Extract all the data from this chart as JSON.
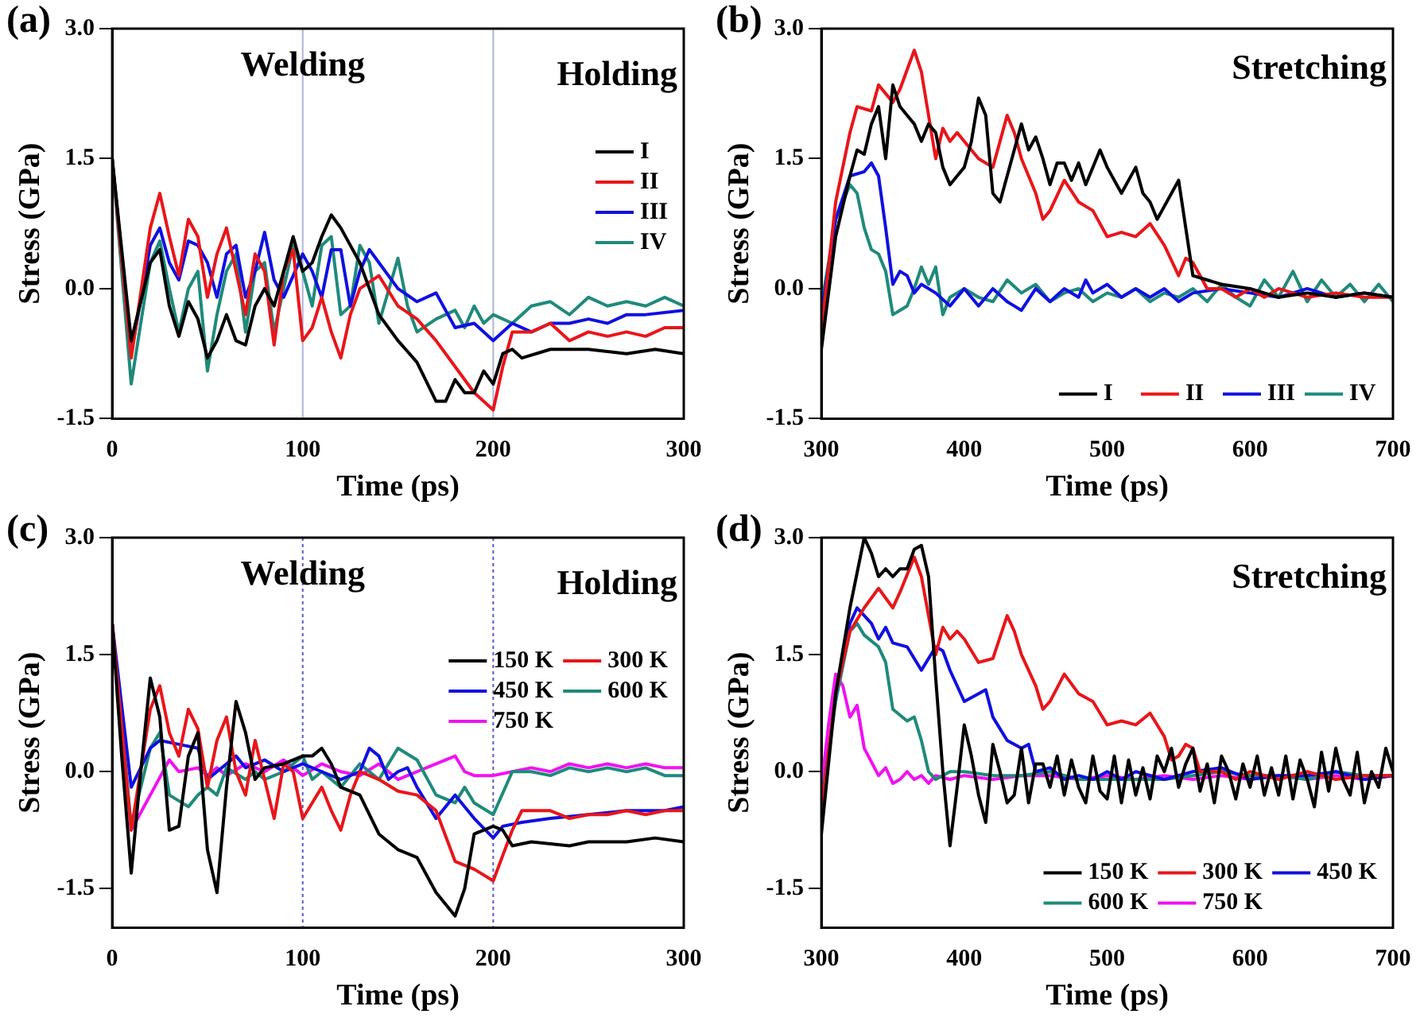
{
  "chart_data": [
    {
      "type": "line",
      "title": "(a)",
      "xlabel": "Time (ps)",
      "ylabel": "Stress (GPa)",
      "xlim": [
        0,
        300
      ],
      "xticks": [
        0,
        100,
        200,
        300
      ],
      "ylim": [
        -1.5,
        3.0
      ],
      "yticks": [
        {
          "value": -1.5,
          "label": "-1.5"
        },
        {
          "value": 0,
          "label": "0.0"
        },
        {
          "value": 1.5,
          "label": "1.5"
        },
        {
          "value": 3,
          "label": "3.0"
        }
      ],
      "legend": "top right",
      "ref_lines": [
        {
          "axis": "x",
          "value": 100,
          "color": "#b0b4d8",
          "line_style": "solid"
        },
        {
          "axis": "x",
          "value": 200,
          "color": "#b0b4d8",
          "line_style": "solid"
        }
      ],
      "annotations": [
        "Welding",
        "Holding"
      ],
      "series": [
        {
          "name": "I",
          "color": "#000000",
          "x": [
            0,
            10,
            20,
            25,
            30,
            35,
            40,
            45,
            50,
            55,
            60,
            65,
            70,
            75,
            80,
            85,
            90,
            95,
            100,
            105,
            110,
            115,
            120,
            130,
            140,
            150,
            160,
            170,
            175,
            180,
            185,
            190,
            195,
            200,
            205,
            210,
            215,
            230,
            250,
            270,
            285,
            300
          ],
          "values": [
            1.5,
            -0.6,
            0.3,
            0.45,
            -0.2,
            -0.55,
            -0.15,
            -0.35,
            -0.8,
            -0.6,
            -0.3,
            -0.6,
            -0.65,
            -0.2,
            0.0,
            -0.2,
            0.2,
            0.6,
            0.2,
            0.3,
            0.6,
            0.85,
            0.7,
            0.3,
            -0.3,
            -0.6,
            -0.85,
            -1.3,
            -1.3,
            -1.05,
            -1.2,
            -1.2,
            -0.95,
            -1.1,
            -0.75,
            -0.7,
            -0.8,
            -0.7,
            -0.7,
            -0.75,
            -0.7,
            -0.75
          ]
        },
        {
          "name": "II",
          "color": "#e8161a",
          "x": [
            0,
            10,
            20,
            25,
            30,
            35,
            40,
            45,
            50,
            55,
            60,
            65,
            70,
            75,
            80,
            85,
            90,
            95,
            100,
            105,
            110,
            115,
            120,
            125,
            130,
            140,
            150,
            160,
            170,
            180,
            190,
            200,
            205,
            210,
            220,
            230,
            240,
            250,
            260,
            270,
            280,
            290,
            300
          ],
          "values": [
            1.5,
            -0.8,
            0.7,
            1.1,
            0.6,
            0.15,
            0.8,
            0.6,
            -0.1,
            0.4,
            0.7,
            0.2,
            -0.3,
            0.4,
            0.2,
            -0.65,
            0.2,
            0.45,
            -0.6,
            -0.45,
            -0.1,
            -0.5,
            -0.8,
            -0.3,
            0.0,
            0.15,
            -0.2,
            -0.35,
            -0.6,
            -0.9,
            -1.2,
            -1.4,
            -0.9,
            -0.5,
            -0.5,
            -0.4,
            -0.6,
            -0.5,
            -0.55,
            -0.5,
            -0.55,
            -0.45,
            -0.45
          ]
        },
        {
          "name": "III",
          "color": "#1010e0",
          "x": [
            0,
            10,
            20,
            25,
            30,
            35,
            40,
            45,
            50,
            55,
            60,
            65,
            70,
            75,
            80,
            85,
            90,
            100,
            105,
            110,
            115,
            120,
            125,
            130,
            135,
            140,
            150,
            160,
            170,
            180,
            190,
            200,
            210,
            220,
            230,
            240,
            250,
            260,
            270,
            280,
            300
          ],
          "values": [
            1.5,
            -0.75,
            0.5,
            0.7,
            0.3,
            0.1,
            0.55,
            0.5,
            0.3,
            -0.1,
            0.4,
            0.5,
            -0.1,
            0.2,
            0.65,
            0.1,
            -0.1,
            0.4,
            0.2,
            -0.1,
            0.45,
            0.45,
            -0.2,
            0.2,
            0.45,
            0.3,
            0.0,
            -0.15,
            -0.05,
            -0.45,
            -0.4,
            -0.6,
            -0.4,
            -0.5,
            -0.4,
            -0.4,
            -0.35,
            -0.4,
            -0.3,
            -0.3,
            -0.25
          ]
        },
        {
          "name": "IV",
          "color": "#1f8a7a",
          "x": [
            0,
            10,
            20,
            25,
            30,
            35,
            40,
            45,
            50,
            55,
            60,
            65,
            70,
            75,
            80,
            85,
            90,
            95,
            100,
            105,
            110,
            115,
            120,
            125,
            130,
            135,
            140,
            150,
            155,
            160,
            170,
            180,
            185,
            190,
            195,
            200,
            210,
            220,
            230,
            240,
            250,
            260,
            270,
            280,
            290,
            300
          ],
          "values": [
            1.5,
            -1.1,
            0.3,
            0.55,
            0.0,
            -0.5,
            0.0,
            0.2,
            -0.95,
            -0.3,
            0.2,
            0.4,
            -0.5,
            0.2,
            0.3,
            -0.5,
            0.0,
            0.5,
            0.2,
            -0.2,
            0.5,
            0.6,
            -0.3,
            -0.2,
            0.5,
            0.3,
            -0.4,
            0.35,
            -0.2,
            -0.5,
            -0.35,
            -0.25,
            -0.45,
            -0.2,
            -0.4,
            -0.3,
            -0.4,
            -0.2,
            -0.15,
            -0.3,
            -0.1,
            -0.2,
            -0.15,
            -0.2,
            -0.1,
            -0.2
          ]
        }
      ]
    },
    {
      "type": "line",
      "title": "(b)",
      "xlabel": "Time (ps)",
      "ylabel": "Stress (GPa)",
      "xlim": [
        300,
        700
      ],
      "xticks": [
        300,
        400,
        500,
        600,
        700
      ],
      "ylim": [
        -1.5,
        3.0
      ],
      "yticks": [
        {
          "value": -1.5,
          "label": "-1.5"
        },
        {
          "value": 0,
          "label": "0.0"
        },
        {
          "value": 1.5,
          "label": "1.5"
        },
        {
          "value": 3,
          "label": "3.0"
        }
      ],
      "legend": "bottom right",
      "annotations": [
        "Stretching"
      ],
      "series": [
        {
          "name": "I",
          "color": "#000000",
          "x": [
            300,
            310,
            320,
            325,
            330,
            335,
            340,
            345,
            350,
            355,
            360,
            365,
            370,
            375,
            380,
            385,
            390,
            395,
            400,
            405,
            410,
            415,
            420,
            425,
            430,
            435,
            440,
            445,
            450,
            455,
            460,
            465,
            470,
            475,
            480,
            485,
            495,
            500,
            510,
            520,
            525,
            530,
            535,
            540,
            550,
            560,
            570,
            580,
            600,
            620,
            640,
            660,
            680,
            700
          ],
          "values": [
            -0.7,
            0.6,
            1.3,
            1.6,
            1.55,
            1.9,
            2.1,
            1.5,
            2.35,
            2.1,
            2.0,
            1.9,
            1.7,
            1.9,
            1.8,
            1.4,
            1.2,
            1.3,
            1.4,
            1.7,
            2.2,
            2.0,
            1.1,
            1.0,
            1.3,
            1.6,
            1.9,
            1.6,
            1.75,
            1.5,
            1.2,
            1.45,
            1.45,
            1.25,
            1.45,
            1.2,
            1.6,
            1.4,
            1.1,
            1.4,
            1.1,
            1.0,
            0.8,
            0.95,
            1.25,
            0.15,
            0.1,
            0.05,
            0.0,
            -0.1,
            -0.05,
            -0.1,
            -0.05,
            -0.1
          ]
        },
        {
          "name": "II",
          "color": "#e8161a",
          "x": [
            300,
            310,
            320,
            325,
            335,
            340,
            350,
            355,
            365,
            370,
            375,
            380,
            385,
            390,
            395,
            400,
            410,
            420,
            430,
            435,
            440,
            450,
            455,
            460,
            470,
            480,
            490,
            500,
            510,
            520,
            530,
            540,
            550,
            555,
            560,
            570,
            580,
            590,
            600,
            610,
            620,
            640,
            660,
            680,
            700
          ],
          "values": [
            -0.5,
            1.0,
            1.8,
            2.1,
            2.05,
            2.35,
            2.15,
            2.3,
            2.75,
            2.5,
            2.0,
            1.5,
            1.85,
            1.7,
            1.8,
            1.7,
            1.5,
            1.4,
            2.0,
            1.8,
            1.5,
            1.1,
            0.8,
            0.9,
            1.25,
            1.0,
            0.9,
            0.6,
            0.65,
            0.6,
            0.75,
            0.5,
            0.15,
            0.35,
            0.3,
            0.0,
            0.0,
            -0.1,
            0.0,
            -0.1,
            0.0,
            -0.1,
            -0.05,
            -0.1,
            -0.1
          ]
        },
        {
          "name": "III",
          "color": "#1010e0",
          "x": [
            300,
            310,
            320,
            330,
            335,
            340,
            345,
            350,
            355,
            360,
            365,
            370,
            380,
            390,
            400,
            410,
            420,
            430,
            440,
            450,
            460,
            470,
            480,
            485,
            490,
            500,
            510,
            520,
            530,
            540,
            550,
            560,
            580,
            600,
            620,
            640,
            660,
            680,
            700
          ],
          "values": [
            -0.3,
            0.8,
            1.3,
            1.35,
            1.45,
            1.3,
            0.7,
            0.05,
            0.2,
            0.15,
            -0.05,
            0.05,
            -0.05,
            -0.2,
            0.0,
            -0.2,
            0.0,
            -0.15,
            -0.25,
            0.0,
            -0.15,
            0.0,
            -0.1,
            0.1,
            -0.05,
            0.05,
            -0.1,
            0.0,
            -0.1,
            0.0,
            -0.15,
            -0.05,
            0.0,
            -0.05,
            -0.1,
            0.0,
            -0.1,
            -0.05,
            -0.1
          ]
        },
        {
          "name": "IV",
          "color": "#1f8a7a",
          "x": [
            300,
            310,
            320,
            325,
            330,
            335,
            340,
            345,
            350,
            355,
            360,
            365,
            370,
            375,
            380,
            385,
            390,
            400,
            410,
            420,
            430,
            440,
            450,
            460,
            470,
            480,
            490,
            500,
            510,
            520,
            530,
            540,
            550,
            560,
            570,
            580,
            590,
            600,
            610,
            620,
            630,
            640,
            650,
            660,
            670,
            680,
            690,
            700
          ],
          "values": [
            -0.2,
            0.8,
            1.2,
            1.1,
            0.7,
            0.45,
            0.4,
            0.2,
            -0.3,
            -0.25,
            -0.2,
            0.0,
            0.25,
            0.05,
            0.25,
            -0.3,
            -0.1,
            0.0,
            -0.1,
            -0.15,
            0.1,
            -0.05,
            0.05,
            -0.15,
            -0.05,
            0.0,
            -0.15,
            -0.05,
            -0.1,
            0.0,
            -0.15,
            -0.05,
            -0.1,
            0.0,
            -0.15,
            0.05,
            -0.1,
            -0.2,
            0.1,
            -0.1,
            0.2,
            -0.15,
            0.1,
            -0.1,
            0.05,
            -0.15,
            0.05,
            -0.15
          ]
        }
      ]
    },
    {
      "type": "line",
      "title": "(c)",
      "xlabel": "Time (ps)",
      "ylabel": "Stress (GPa)",
      "xlim": [
        0,
        300
      ],
      "xticks": [
        0,
        100,
        200,
        300
      ],
      "ylim": [
        -2.0,
        3.0
      ],
      "yticks": [
        {
          "value": -1.5,
          "label": "-1.5"
        },
        {
          "value": 0,
          "label": "0.0"
        },
        {
          "value": 1.5,
          "label": "1.5"
        },
        {
          "value": 3,
          "label": "3.0"
        }
      ],
      "legend": "top right",
      "ref_lines": [
        {
          "axis": "x",
          "value": 100,
          "color": "#5a5ad0",
          "line_style": "dotted"
        },
        {
          "axis": "x",
          "value": 200,
          "color": "#5a5ad0",
          "line_style": "dotted"
        }
      ],
      "annotations": [
        "Welding",
        "Holding"
      ],
      "series": [
        {
          "name": "150 K",
          "color": "#000000",
          "x": [
            0,
            5,
            10,
            15,
            20,
            25,
            30,
            35,
            40,
            45,
            50,
            55,
            60,
            65,
            70,
            75,
            80,
            90,
            100,
            105,
            110,
            115,
            120,
            130,
            140,
            150,
            160,
            170,
            180,
            185,
            190,
            200,
            205,
            210,
            220,
            240,
            250,
            270,
            285,
            300
          ],
          "values": [
            1.9,
            0.2,
            -1.3,
            0.0,
            1.2,
            0.7,
            -0.75,
            -0.7,
            0.2,
            0.5,
            -1.0,
            -1.55,
            -0.2,
            0.9,
            0.5,
            -0.1,
            0.05,
            0.1,
            0.2,
            0.2,
            0.3,
            0.1,
            -0.2,
            -0.3,
            -0.8,
            -1.0,
            -1.1,
            -1.55,
            -1.85,
            -1.5,
            -0.8,
            -0.7,
            -0.75,
            -0.95,
            -0.9,
            -0.95,
            -0.9,
            -0.9,
            -0.85,
            -0.9
          ]
        },
        {
          "name": "300 K",
          "color": "#e8161a",
          "x": [
            0,
            10,
            20,
            25,
            30,
            35,
            40,
            45,
            50,
            55,
            60,
            65,
            70,
            75,
            80,
            85,
            90,
            95,
            100,
            105,
            110,
            115,
            120,
            125,
            130,
            140,
            150,
            160,
            170,
            180,
            190,
            200,
            210,
            215,
            230,
            240,
            250,
            260,
            270,
            280,
            290,
            300
          ],
          "values": [
            1.9,
            -0.75,
            0.8,
            1.1,
            0.5,
            0.2,
            0.8,
            0.55,
            -0.2,
            0.4,
            0.7,
            0.0,
            -0.3,
            0.4,
            -0.1,
            -0.6,
            0.1,
            0.0,
            -0.6,
            -0.4,
            -0.2,
            -0.5,
            -0.75,
            -0.3,
            0.0,
            -0.1,
            -0.25,
            -0.3,
            -0.5,
            -1.15,
            -1.25,
            -1.4,
            -0.75,
            -0.5,
            -0.5,
            -0.6,
            -0.55,
            -0.55,
            -0.5,
            -0.55,
            -0.5,
            -0.5
          ]
        },
        {
          "name": "450 K",
          "color": "#1010e0",
          "x": [
            0,
            10,
            20,
            25,
            35,
            45,
            50,
            60,
            65,
            70,
            80,
            90,
            100,
            110,
            120,
            130,
            135,
            140,
            145,
            150,
            155,
            160,
            170,
            180,
            190,
            200,
            205,
            215,
            230,
            250,
            270,
            290,
            300
          ],
          "values": [
            1.9,
            -0.2,
            0.3,
            0.4,
            0.35,
            0.3,
            -0.1,
            0.1,
            0.2,
            0.05,
            0.15,
            0.0,
            0.1,
            0.0,
            -0.1,
            0.0,
            0.3,
            0.2,
            -0.1,
            0.0,
            0.05,
            -0.2,
            -0.6,
            -0.3,
            -0.6,
            -0.85,
            -0.7,
            -0.65,
            -0.6,
            -0.55,
            -0.5,
            -0.5,
            -0.45
          ]
        },
        {
          "name": "600 K",
          "color": "#1f8a7a",
          "x": [
            0,
            10,
            20,
            25,
            30,
            40,
            45,
            50,
            55,
            60,
            70,
            75,
            80,
            90,
            100,
            105,
            110,
            120,
            130,
            140,
            150,
            160,
            170,
            180,
            185,
            190,
            200,
            210,
            220,
            230,
            240,
            250,
            260,
            270,
            280,
            290,
            300
          ],
          "values": [
            1.9,
            -0.7,
            0.3,
            0.5,
            -0.3,
            -0.45,
            -0.3,
            -0.2,
            -0.3,
            0.05,
            -0.1,
            0.0,
            -0.1,
            0.0,
            0.2,
            -0.1,
            0.0,
            -0.2,
            0.1,
            -0.1,
            0.3,
            0.15,
            -0.3,
            -0.4,
            -0.2,
            -0.4,
            -0.55,
            0.0,
            0.0,
            -0.05,
            0.05,
            0.0,
            0.05,
            0.0,
            0.05,
            -0.05,
            -0.05
          ]
        },
        {
          "name": "750 K",
          "color": "#f012f0",
          "x": [
            0,
            10,
            20,
            30,
            35,
            45,
            50,
            55,
            60,
            70,
            80,
            90,
            100,
            110,
            120,
            130,
            140,
            150,
            160,
            170,
            180,
            185,
            190,
            200,
            210,
            220,
            230,
            240,
            250,
            260,
            270,
            280,
            290,
            300
          ],
          "values": [
            1.9,
            -0.75,
            -0.3,
            0.15,
            0.0,
            0.05,
            -0.05,
            0.05,
            -0.05,
            0.1,
            0.0,
            0.15,
            -0.05,
            0.1,
            0.0,
            -0.05,
            0.1,
            -0.1,
            0.0,
            0.1,
            0.2,
            0.0,
            -0.05,
            -0.05,
            0.0,
            0.05,
            0.0,
            0.1,
            0.05,
            0.1,
            0.05,
            0.1,
            0.05,
            0.05
          ]
        }
      ]
    },
    {
      "type": "line",
      "title": "(d)",
      "xlabel": "Time (ps)",
      "ylabel": "Stress (GPa)",
      "xlim": [
        300,
        700
      ],
      "xticks": [
        300,
        400,
        500,
        600,
        700
      ],
      "ylim": [
        -2.0,
        3.0
      ],
      "yticks": [
        {
          "value": -1.5,
          "label": "-1.5"
        },
        {
          "value": 0,
          "label": "0.0"
        },
        {
          "value": 1.5,
          "label": "1.5"
        },
        {
          "value": 3,
          "label": "3.0"
        }
      ],
      "legend": "bottom right",
      "annotations": [
        "Stretching"
      ],
      "series": [
        {
          "name": "150 K",
          "color": "#000000",
          "x": [
            300,
            310,
            320,
            330,
            335,
            340,
            345,
            350,
            355,
            360,
            365,
            370,
            375,
            380,
            385,
            390,
            395,
            400,
            405,
            410,
            415,
            420,
            425,
            430,
            435,
            440,
            445,
            450,
            455,
            460,
            465,
            470,
            475,
            480,
            485,
            490,
            495,
            500,
            505,
            510,
            515,
            520,
            525,
            530,
            535,
            540,
            545,
            550,
            555,
            560,
            565,
            570,
            575,
            580,
            585,
            590,
            595,
            600,
            605,
            610,
            615,
            620,
            625,
            630,
            635,
            640,
            645,
            650,
            655,
            660,
            665,
            670,
            675,
            680,
            685,
            690,
            695,
            700
          ],
          "values": [
            -0.8,
            1.0,
            2.1,
            3.0,
            2.8,
            2.5,
            2.6,
            2.5,
            2.6,
            2.6,
            2.85,
            2.9,
            2.5,
            1.2,
            0.0,
            -0.95,
            -0.2,
            0.6,
            0.2,
            -0.3,
            -0.65,
            0.35,
            0.0,
            -0.4,
            -0.3,
            0.3,
            -0.4,
            0.1,
            0.1,
            -0.2,
            0.2,
            -0.3,
            0.15,
            -0.2,
            -0.4,
            0.2,
            -0.25,
            -0.35,
            0.2,
            -0.4,
            0.15,
            -0.3,
            0.05,
            -0.35,
            0.2,
            0.0,
            0.3,
            -0.2,
            0.1,
            0.3,
            -0.25,
            0.1,
            -0.4,
            0.2,
            0.0,
            -0.35,
            0.1,
            -0.2,
            0.2,
            -0.3,
            0.05,
            -0.3,
            0.2,
            -0.35,
            0.15,
            -0.1,
            -0.45,
            0.25,
            -0.25,
            0.3,
            -0.1,
            -0.3,
            0.25,
            -0.4,
            0.0,
            -0.2,
            0.3,
            0.0
          ]
        },
        {
          "name": "300 K",
          "color": "#e8161a",
          "x": [
            300,
            310,
            320,
            330,
            340,
            350,
            355,
            365,
            370,
            380,
            385,
            390,
            395,
            400,
            410,
            420,
            430,
            435,
            440,
            450,
            455,
            460,
            470,
            480,
            490,
            500,
            510,
            520,
            530,
            540,
            545,
            550,
            555,
            560,
            565,
            580,
            590,
            600,
            620,
            640,
            660,
            680,
            700
          ],
          "values": [
            -0.5,
            1.0,
            1.8,
            2.1,
            2.35,
            2.1,
            2.3,
            2.75,
            2.5,
            1.5,
            1.85,
            1.7,
            1.8,
            1.7,
            1.4,
            1.45,
            2.0,
            1.8,
            1.5,
            1.1,
            0.8,
            0.9,
            1.25,
            1.0,
            0.9,
            0.6,
            0.65,
            0.6,
            0.75,
            0.45,
            0.15,
            0.2,
            0.35,
            0.3,
            0.0,
            0.0,
            -0.1,
            0.0,
            -0.1,
            0.0,
            -0.1,
            -0.05,
            -0.05
          ]
        },
        {
          "name": "450 K",
          "color": "#1010e0",
          "x": [
            300,
            310,
            320,
            325,
            335,
            340,
            345,
            350,
            360,
            370,
            380,
            385,
            390,
            400,
            410,
            415,
            420,
            430,
            440,
            445,
            450,
            460,
            470,
            480,
            490,
            500,
            510,
            520,
            540,
            560,
            580,
            600,
            620,
            640,
            660,
            680,
            700
          ],
          "values": [
            -0.5,
            1.0,
            1.9,
            2.1,
            1.9,
            1.7,
            1.85,
            1.65,
            1.6,
            1.3,
            1.6,
            1.55,
            1.3,
            0.9,
            1.0,
            1.05,
            0.7,
            0.4,
            0.3,
            0.35,
            0.0,
            0.05,
            -0.1,
            -0.05,
            -0.1,
            0.0,
            -0.1,
            0.0,
            -0.1,
            0.0,
            0.05,
            -0.1,
            -0.05,
            -0.05,
            0.0,
            -0.1,
            -0.05
          ]
        },
        {
          "name": "600 K",
          "color": "#1f8a7a",
          "x": [
            300,
            310,
            320,
            325,
            330,
            340,
            345,
            350,
            360,
            365,
            370,
            375,
            380,
            390,
            400,
            420,
            440,
            460,
            480,
            500,
            520,
            540,
            560,
            580,
            600,
            620,
            640,
            660,
            680,
            700
          ],
          "values": [
            -0.4,
            0.9,
            1.8,
            1.9,
            1.75,
            1.6,
            1.4,
            0.8,
            0.65,
            0.7,
            0.4,
            0.0,
            -0.1,
            0.0,
            0.0,
            -0.05,
            -0.05,
            0.0,
            -0.1,
            -0.1,
            -0.1,
            -0.1,
            -0.05,
            0.0,
            -0.05,
            -0.05,
            -0.1,
            0.0,
            -0.05,
            -0.05
          ]
        },
        {
          "name": "750 K",
          "color": "#f012f0",
          "x": [
            300,
            305,
            310,
            315,
            320,
            325,
            330,
            340,
            345,
            350,
            355,
            360,
            365,
            370,
            375,
            380,
            390,
            400,
            420,
            440,
            460,
            480,
            500,
            520,
            540,
            560,
            580,
            600,
            620,
            640,
            660,
            680,
            700
          ],
          "values": [
            -0.2,
            0.6,
            1.25,
            1.1,
            0.7,
            0.85,
            0.3,
            -0.05,
            0.05,
            -0.15,
            -0.1,
            0.0,
            -0.1,
            -0.05,
            -0.15,
            -0.05,
            -0.1,
            -0.05,
            -0.1,
            -0.05,
            -0.05,
            -0.1,
            -0.05,
            -0.1,
            -0.05,
            -0.1,
            -0.05,
            -0.1,
            -0.05,
            -0.1,
            -0.05,
            -0.1,
            -0.05
          ]
        }
      ]
    }
  ]
}
